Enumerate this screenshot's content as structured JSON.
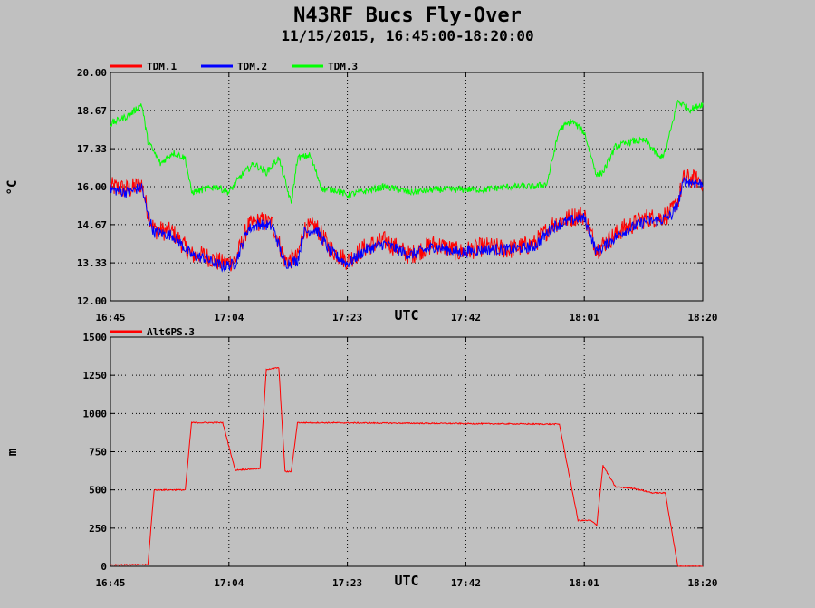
{
  "title": "N43RF Bucs Fly-Over",
  "subtitle": "11/15/2015, 16:45:00-18:20:00",
  "colors": {
    "background": "#c0c0c0",
    "red": "#ff0000",
    "blue": "#0000ff",
    "green": "#00ff00"
  },
  "chart_data": [
    {
      "type": "line",
      "xlabel": "UTC",
      "ylabel": "°C",
      "x_ticks": [
        "16:45",
        "17:04",
        "17:23",
        "17:42",
        "18:01",
        "18:20"
      ],
      "y_ticks": [
        "20.00",
        "18.67",
        "17.33",
        "16.00",
        "14.67",
        "13.33",
        "12.00"
      ],
      "ylim": [
        12.0,
        20.0
      ],
      "grid": true,
      "legend": "top-left, above plot",
      "series": [
        {
          "name": "TDM.1",
          "color": "#ff0000",
          "noise": 0.35,
          "x": [
            "16:45",
            "16:48",
            "16:50",
            "16:51",
            "16:52",
            "16:55",
            "16:58",
            "17:00",
            "17:03",
            "17:05",
            "17:07",
            "17:09",
            "17:11",
            "17:13",
            "17:15",
            "17:16",
            "17:18",
            "17:20",
            "17:21",
            "17:23",
            "17:26",
            "17:29",
            "17:33",
            "17:37",
            "17:41",
            "17:45",
            "17:49",
            "17:53",
            "17:56",
            "18:00",
            "18:01",
            "18:03",
            "18:07",
            "18:11",
            "18:13",
            "18:15",
            "18:16",
            "18:17",
            "18:20"
          ],
          "y": [
            16.0,
            15.9,
            16.1,
            15.1,
            14.5,
            14.4,
            13.6,
            13.6,
            13.3,
            13.4,
            14.6,
            14.8,
            14.7,
            13.4,
            13.5,
            14.5,
            14.6,
            13.9,
            13.7,
            13.4,
            13.9,
            14.1,
            13.6,
            14.0,
            13.7,
            13.9,
            13.8,
            14.0,
            14.7,
            15.0,
            15.0,
            13.8,
            14.5,
            14.9,
            14.9,
            15.1,
            15.5,
            16.3,
            16.2
          ]
        },
        {
          "name": "TDM.2",
          "color": "#0000ff",
          "noise": 0.2,
          "x": [
            "16:45",
            "16:48",
            "16:50",
            "16:51",
            "16:52",
            "16:55",
            "16:58",
            "17:00",
            "17:03",
            "17:05",
            "17:07",
            "17:09",
            "17:11",
            "17:13",
            "17:15",
            "17:16",
            "17:18",
            "17:20",
            "17:21",
            "17:23",
            "17:26",
            "17:29",
            "17:33",
            "17:37",
            "17:41",
            "17:45",
            "17:49",
            "17:53",
            "17:56",
            "18:00",
            "18:01",
            "18:03",
            "18:07",
            "18:11",
            "18:13",
            "18:15",
            "18:16",
            "18:17",
            "18:20"
          ],
          "y": [
            15.9,
            15.8,
            16.0,
            15.0,
            14.4,
            14.3,
            13.6,
            13.5,
            13.2,
            13.3,
            14.5,
            14.7,
            14.6,
            13.3,
            13.4,
            14.4,
            14.5,
            13.8,
            13.6,
            13.3,
            13.8,
            14.0,
            13.6,
            13.9,
            13.7,
            13.8,
            13.8,
            13.9,
            14.6,
            14.9,
            14.9,
            13.7,
            14.4,
            14.8,
            14.8,
            15.0,
            15.4,
            16.2,
            16.1
          ]
        },
        {
          "name": "TDM.3",
          "color": "#00ff00",
          "noise": 0.12,
          "x": [
            "16:45",
            "16:48",
            "16:50",
            "16:51",
            "16:53",
            "16:55",
            "16:57",
            "16:58",
            "17:02",
            "17:04",
            "17:06",
            "17:08",
            "17:10",
            "17:12",
            "17:14",
            "17:15",
            "17:17",
            "17:19",
            "17:21",
            "17:23",
            "17:25",
            "17:29",
            "17:33",
            "17:37",
            "17:41",
            "17:45",
            "17:49",
            "17:53",
            "17:55",
            "17:57",
            "17:59",
            "18:01",
            "18:03",
            "18:04",
            "18:06",
            "18:09",
            "18:11",
            "18:13",
            "18:14",
            "18:16",
            "18:18",
            "18:20"
          ],
          "y": [
            18.2,
            18.5,
            18.9,
            17.6,
            16.8,
            17.2,
            17.0,
            15.8,
            16.0,
            15.8,
            16.4,
            16.8,
            16.5,
            17.0,
            15.4,
            17.0,
            17.1,
            15.9,
            15.9,
            15.7,
            15.8,
            16.0,
            15.8,
            15.9,
            15.9,
            15.9,
            16.0,
            16.0,
            16.1,
            18.0,
            18.3,
            17.9,
            16.4,
            16.5,
            17.4,
            17.6,
            17.6,
            17.0,
            17.2,
            19.0,
            18.7,
            18.9
          ]
        }
      ]
    },
    {
      "type": "line",
      "xlabel": "UTC",
      "ylabel": "m",
      "x_ticks": [
        "16:45",
        "17:04",
        "17:23",
        "17:42",
        "18:01",
        "18:20"
      ],
      "y_ticks": [
        "1500",
        "1250",
        "1000",
        "750",
        "500",
        "250",
        "0"
      ],
      "ylim": [
        0,
        1500
      ],
      "grid": true,
      "legend": "top-left, above plot",
      "series": [
        {
          "name": "AltGPS.3",
          "color": "#ff0000",
          "noise": 4,
          "x": [
            "16:45",
            "16:51",
            "16:52",
            "16:57",
            "16:58",
            "17:03",
            "17:05",
            "17:09",
            "17:10",
            "17:12",
            "17:13",
            "17:14",
            "17:15",
            "17:17",
            "17:18",
            "17:57",
            "18:00",
            "18:02",
            "18:03",
            "18:04",
            "18:06",
            "18:09",
            "18:12",
            "18:14",
            "18:16",
            "18:17",
            "18:20"
          ],
          "y": [
            10,
            10,
            500,
            500,
            940,
            940,
            630,
            640,
            1290,
            1300,
            620,
            620,
            940,
            940,
            940,
            930,
            300,
            300,
            270,
            660,
            520,
            510,
            480,
            480,
            0,
            0,
            0
          ]
        }
      ]
    }
  ]
}
